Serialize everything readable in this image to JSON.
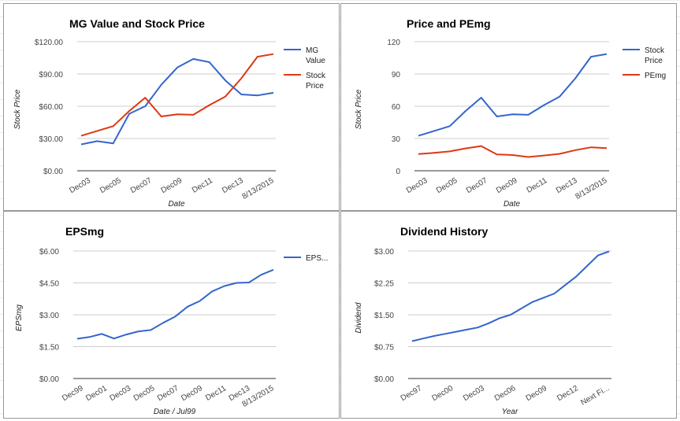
{
  "chart_data": [
    {
      "type": "line",
      "title": "MG Value and Stock Price",
      "xlabel": "Date",
      "ylabel": "Stock Price",
      "ylim": [
        0,
        120
      ],
      "y_ticks": [
        "$0.00",
        "$30.00",
        "$60.00",
        "$90.00",
        "$120.00"
      ],
      "x_tick_labels": [
        "Dec03",
        "Dec05",
        "Dec07",
        "Dec09",
        "Dec11",
        "Dec13",
        "8/13/2015"
      ],
      "legend_position": "right",
      "grid": true,
      "series": [
        {
          "name": "MG Value",
          "color": "#3366cc",
          "values": [
            24.5,
            27.5,
            25.5,
            53,
            60,
            80,
            96,
            104,
            101,
            84,
            71,
            70,
            72.5
          ]
        },
        {
          "name": "Stock Price",
          "color": "#dc3912",
          "values": [
            32.5,
            37,
            41.5,
            55.5,
            68,
            50.5,
            52.5,
            52,
            61,
            69,
            86,
            106,
            108.5
          ]
        }
      ]
    },
    {
      "type": "line",
      "title": "Price and PEmg",
      "xlabel": "Date",
      "ylabel": "Stock Price",
      "ylim": [
        0,
        120
      ],
      "y_ticks": [
        "0",
        "30",
        "60",
        "90",
        "120"
      ],
      "x_tick_labels": [
        "Dec03",
        "Dec05",
        "Dec07",
        "Dec09",
        "Dec11",
        "Dec13",
        "8/13/2015"
      ],
      "legend_position": "right",
      "grid": true,
      "series": [
        {
          "name": "Stock Price",
          "color": "#3366cc",
          "values": [
            32.5,
            37,
            41.5,
            55.5,
            68,
            50.5,
            52.5,
            52,
            61,
            69,
            86,
            106,
            108.5
          ]
        },
        {
          "name": "PEmg",
          "color": "#dc3912",
          "values": [
            15.5,
            16.7,
            18,
            20.8,
            23,
            15.2,
            14.6,
            12.8,
            14.2,
            15.7,
            19.2,
            21.8,
            21
          ]
        }
      ]
    },
    {
      "type": "line",
      "title": "EPSmg",
      "xlabel": "Date / Jul99",
      "ylabel": "EPSmg",
      "ylim": [
        0,
        6
      ],
      "y_ticks": [
        "$0.00",
        "$1.50",
        "$3.00",
        "$4.50",
        "$6.00"
      ],
      "x_tick_labels": [
        "Dec99",
        "Dec01",
        "Dec03",
        "Dec05",
        "Dec07",
        "Dec09",
        "Dec11",
        "Dec13",
        "8/13/2015"
      ],
      "legend_position": "right",
      "grid": true,
      "series": [
        {
          "name": "EPS...",
          "color": "#3366cc",
          "values": [
            1.87,
            1.95,
            2.1,
            1.88,
            2.07,
            2.22,
            2.28,
            2.62,
            2.92,
            3.38,
            3.65,
            4.1,
            4.35,
            4.5,
            4.52,
            4.88,
            5.12
          ]
        }
      ]
    },
    {
      "type": "line",
      "title": "Dividend History",
      "xlabel": "Year",
      "ylabel": "Dividend",
      "ylim": [
        0,
        3
      ],
      "y_ticks": [
        "$0.00",
        "$0.75",
        "$1.50",
        "$2.25",
        "$3.00"
      ],
      "x_tick_labels": [
        "Dec97",
        "Dec00",
        "Dec03",
        "Dec06",
        "Dec09",
        "Dec12",
        "Next Fi..."
      ],
      "grid": true,
      "series": [
        {
          "color": "#3366cc",
          "values": [
            0.88,
            0.94,
            1.0,
            1.05,
            1.1,
            1.15,
            1.2,
            1.3,
            1.42,
            1.5,
            1.65,
            1.8,
            1.9,
            2.0,
            2.2,
            2.4,
            2.65,
            2.9,
            2.99
          ]
        }
      ]
    }
  ]
}
